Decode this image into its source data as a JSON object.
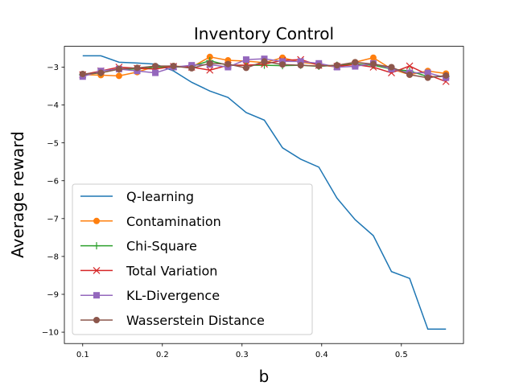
{
  "chart_data": {
    "type": "line",
    "title": "Inventory Control",
    "xlabel": "b",
    "ylabel": "Average reward",
    "xlim": [
      0.077,
      0.578
    ],
    "ylim": [
      -10.3,
      -2.45
    ],
    "xticks": [
      0.1,
      0.2,
      0.3,
      0.4,
      0.5
    ],
    "xtick_labels": [
      "0.1",
      "0.2",
      "0.3",
      "0.4",
      "0.5"
    ],
    "yticks": [
      -3,
      -4,
      -5,
      -6,
      -7,
      -8,
      -9,
      -10
    ],
    "ytick_labels": [
      "−3",
      "−4",
      "−5",
      "−6",
      "−7",
      "−8",
      "−9",
      "−10"
    ],
    "legend_position": "lower-left",
    "x": [
      0.1,
      0.1228,
      0.1456,
      0.1684,
      0.1912,
      0.214,
      0.2368,
      0.2596,
      0.2824,
      0.3052,
      0.328,
      0.3508,
      0.3736,
      0.3964,
      0.4192,
      0.442,
      0.4648,
      0.4876,
      0.5104,
      0.5332,
      0.556
    ],
    "series": [
      {
        "name": "Q-learning",
        "color": "#1f77b4",
        "marker": "none",
        "x": [
          0.1,
          0.1228,
          0.1456,
          0.1684,
          0.1912,
          0.214,
          0.2368,
          0.2596,
          0.2824,
          0.3052,
          0.328,
          0.3508,
          0.3736,
          0.3964,
          0.4192,
          0.442,
          0.4648,
          0.4876,
          0.5104,
          0.5332,
          0.556
        ],
        "values": [
          -2.7,
          -2.7,
          -2.87,
          -2.89,
          -2.92,
          -3.1,
          -3.4,
          -3.63,
          -3.8,
          -4.2,
          -4.4,
          -5.13,
          -5.43,
          -5.64,
          -6.46,
          -7.03,
          -7.45,
          -8.4,
          -8.58,
          -9.92,
          -9.92
        ]
      },
      {
        "name": "Contamination",
        "color": "#ff7f0e",
        "marker": "circle",
        "values": [
          -3.2,
          -3.21,
          -3.23,
          -3.13,
          -2.98,
          -2.97,
          -3.0,
          -2.73,
          -2.82,
          -2.84,
          -2.88,
          -2.75,
          -2.87,
          -2.93,
          -3.0,
          -2.87,
          -2.75,
          -3.05,
          -3.2,
          -3.1,
          -3.17
        ]
      },
      {
        "name": "Chi-Square",
        "color": "#2ca02c",
        "marker": "plus",
        "values": [
          -3.2,
          -3.15,
          -3.05,
          -3.05,
          -3.0,
          -3.0,
          -2.98,
          -2.83,
          -2.95,
          -2.95,
          -2.95,
          -2.96,
          -2.95,
          -2.98,
          -2.95,
          -2.92,
          -2.95,
          -3.05,
          -3.1,
          -3.25,
          -3.25
        ]
      },
      {
        "name": "Total Variation",
        "color": "#d62728",
        "marker": "x",
        "values": [
          -3.2,
          -3.1,
          -3.0,
          -3.03,
          -3.05,
          -2.98,
          -3.0,
          -3.08,
          -2.95,
          -2.95,
          -2.92,
          -2.82,
          -2.8,
          -2.95,
          -2.98,
          -2.93,
          -3.0,
          -3.15,
          -2.97,
          -3.2,
          -3.38
        ]
      },
      {
        "name": "KL-Divergence",
        "color": "#9467bd",
        "marker": "square",
        "values": [
          -3.25,
          -3.1,
          -3.05,
          -3.1,
          -3.15,
          -3.0,
          -2.95,
          -2.93,
          -3.0,
          -2.8,
          -2.78,
          -2.85,
          -2.85,
          -2.9,
          -3.0,
          -2.98,
          -2.9,
          -3.05,
          -3.15,
          -3.15,
          -3.28
        ]
      },
      {
        "name": "Wasserstein Distance",
        "color": "#8c564b",
        "marker": "circle",
        "values": [
          -3.18,
          -3.15,
          -3.05,
          -3.02,
          -2.97,
          -2.97,
          -3.03,
          -2.9,
          -2.92,
          -3.02,
          -2.85,
          -2.93,
          -2.95,
          -2.97,
          -2.95,
          -2.87,
          -2.92,
          -3.0,
          -3.2,
          -3.28,
          -3.22
        ]
      }
    ]
  }
}
